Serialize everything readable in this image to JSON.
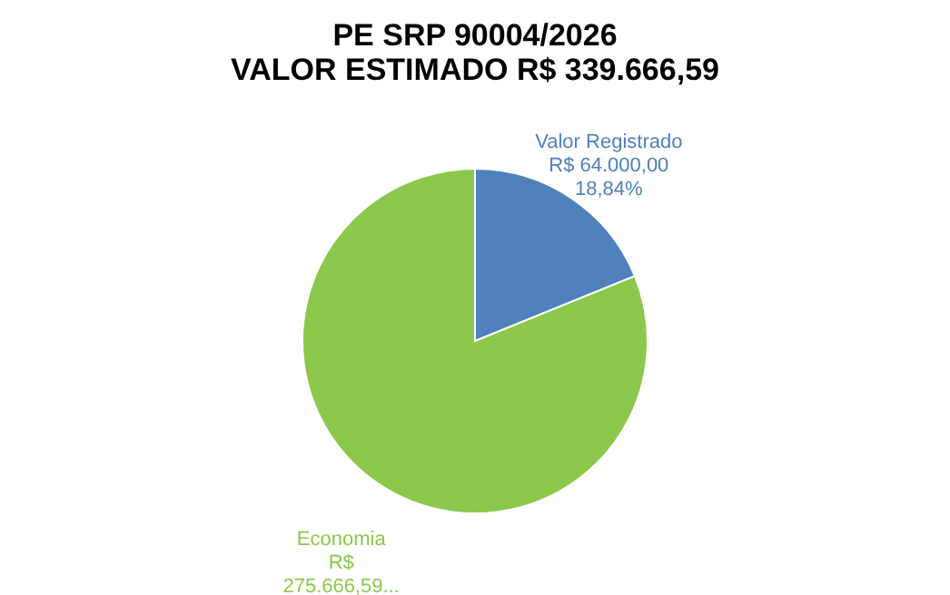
{
  "chart_data": {
    "type": "pie",
    "title": "PE SRP 90004/2026",
    "subtitle": "VALOR ESTIMADO R$ 339.666,59",
    "categories": [
      "Valor Registrado",
      "Economia"
    ],
    "values": [
      64000,
      275666.59
    ],
    "colors": [
      "#4f81bd",
      "#8cc84b"
    ],
    "value_labels": [
      "R$ 64.000,00\n18,84%",
      "R$\n275.666,59..."
    ],
    "legend": false
  }
}
